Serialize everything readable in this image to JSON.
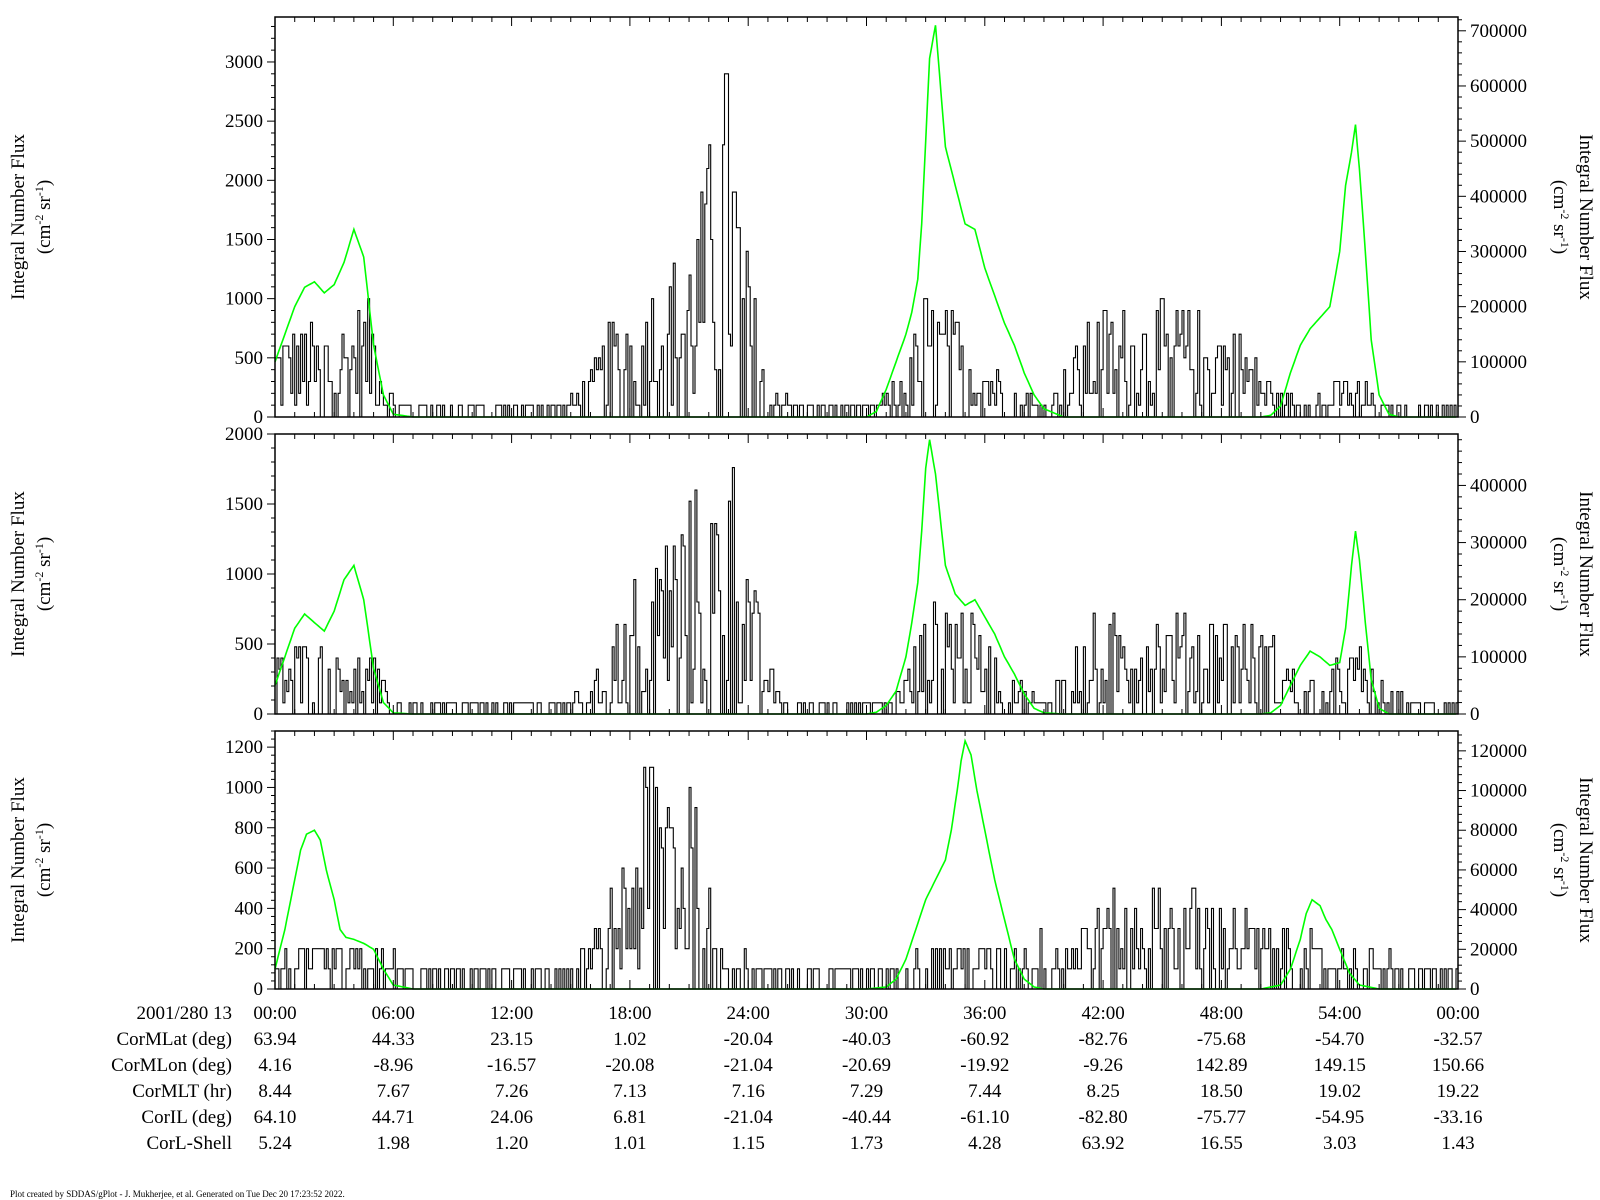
{
  "footer": "Plot created by SDDAS/gPlot - J. Mukherjee, et al.  Generated on Tue Dec 20 17:23:52 2022.",
  "colors": {
    "black_trace": "#000000",
    "green_trace": "#00ff00",
    "axes": "#000000"
  },
  "ylabel_line1": "Integral Number Flux",
  "ylabel_unit": "(cm",
  "ylabel_unit_exp1": "-2",
  "ylabel_unit_mid": " sr",
  "ylabel_unit_exp2": "-1",
  "ylabel_unit_end": ")",
  "ephemeris": {
    "time_header": "2001/280 13",
    "times": [
      "00:00",
      "06:00",
      "12:00",
      "18:00",
      "24:00",
      "30:00",
      "36:00",
      "42:00",
      "48:00",
      "54:00",
      "00:00"
    ],
    "rows": [
      {
        "label": "CorMLat (deg)",
        "values": [
          "63.94",
          "44.33",
          "23.15",
          "1.02",
          "-20.04",
          "-40.03",
          "-60.92",
          "-82.76",
          "-75.68",
          "-54.70",
          "-32.57"
        ]
      },
      {
        "label": "CorMLon (deg)",
        "values": [
          "4.16",
          "-8.96",
          "-16.57",
          "-20.08",
          "-21.04",
          "-20.69",
          "-19.92",
          "-9.26",
          "142.89",
          "149.15",
          "150.66"
        ]
      },
      {
        "label": "CorMLT (hr)",
        "values": [
          "8.44",
          "7.67",
          "7.26",
          "7.13",
          "7.16",
          "7.29",
          "7.44",
          "8.25",
          "18.50",
          "19.02",
          "19.22"
        ]
      },
      {
        "label": "CorIL (deg)",
        "values": [
          "64.10",
          "44.71",
          "24.06",
          "6.81",
          "-21.04",
          "-40.44",
          "-61.10",
          "-82.80",
          "-75.77",
          "-54.95",
          "-33.16"
        ]
      },
      {
        "label": "CorL-Shell",
        "values": [
          "5.24",
          "1.98",
          "1.20",
          "1.01",
          "1.15",
          "1.73",
          "4.28",
          "63.92",
          "16.55",
          "3.03",
          "1.43"
        ]
      }
    ]
  },
  "chart_data": [
    {
      "type": "line",
      "xlabel": "",
      "xlim": [
        0,
        60
      ],
      "x_ticks": [
        "00:00",
        "06:00",
        "12:00",
        "18:00",
        "24:00",
        "30:00",
        "36:00",
        "42:00",
        "48:00",
        "54:00",
        "00:00"
      ],
      "ylabel": "Integral Number Flux (cm-2 sr-1)",
      "ylim": [
        0,
        3380
      ],
      "y_ticks": [
        0,
        500,
        1000,
        1500,
        2000,
        2500,
        3000
      ],
      "y2label": "Integral Number Flux (cm-2 sr-1)",
      "y2lim": [
        0,
        725000
      ],
      "y2_ticks": [
        0,
        100000,
        200000,
        300000,
        400000,
        500000,
        600000,
        700000
      ],
      "grid": false,
      "series": [
        {
          "axis": "left",
          "color": "#000000",
          "step": 0.1,
          "envelope": {
            "x": [
              0,
              1,
              2,
              3,
              4,
              5,
              5.5,
              6,
              8,
              10,
              12,
              14,
              15.5,
              16.5,
              17.5,
              18.5,
              19.5,
              20.5,
              21.5,
              22.3,
              22.8,
              23.3,
              23.8,
              24.5,
              25,
              25.5,
              26,
              28,
              30,
              31,
              32,
              33,
              34,
              35,
              36,
              37,
              38,
              39,
              40,
              41,
              42,
              43,
              44,
              45,
              46,
              47,
              48,
              49,
              50,
              51,
              52,
              53,
              54,
              55,
              56,
              58,
              60
            ],
            "y": [
              700,
              750,
              700,
              750,
              850,
              900,
              350,
              150,
              100,
              100,
              100,
              100,
              250,
              550,
              900,
              1100,
              1200,
              1300,
              1700,
              2500,
              2900,
              2300,
              1400,
              800,
              400,
              200,
              150,
              100,
              100,
              200,
              500,
              1000,
              900,
              700,
              500,
              350,
              200,
              150,
              350,
              750,
              850,
              850,
              900,
              900,
              900,
              850,
              800,
              700,
              400,
              200,
              150,
              200,
              350,
              300,
              100,
              100,
              100
            ]
          }
        },
        {
          "axis": "right",
          "color": "#00ff00",
          "x": [
            0,
            0.5,
            1,
            1.5,
            2,
            2.5,
            3,
            3.5,
            4,
            4.5,
            5,
            5.5,
            6,
            7,
            8,
            10,
            12,
            14,
            16,
            18,
            20,
            22,
            24,
            26,
            28,
            29,
            30,
            30.5,
            31,
            31.5,
            32,
            32.3,
            32.6,
            32.8,
            33,
            33.2,
            33.5,
            34,
            34.5,
            35,
            35.5,
            36,
            36.5,
            37,
            37.5,
            38,
            38.5,
            39,
            40,
            42,
            44,
            46,
            48,
            50,
            50.5,
            51,
            51.5,
            52,
            52.5,
            53,
            53.5,
            54,
            54.3,
            54.6,
            54.8,
            55,
            55.3,
            55.6,
            56,
            56.5,
            57,
            58,
            60
          ],
          "y": [
            100000,
            150000,
            200000,
            235000,
            245000,
            225000,
            240000,
            280000,
            340000,
            290000,
            130000,
            40000,
            5000,
            0,
            0,
            0,
            0,
            0,
            0,
            0,
            0,
            0,
            0,
            0,
            0,
            0,
            0,
            10000,
            50000,
            100000,
            150000,
            190000,
            250000,
            350000,
            500000,
            650000,
            710000,
            490000,
            420000,
            350000,
            340000,
            270000,
            220000,
            170000,
            130000,
            80000,
            40000,
            15000,
            0,
            0,
            0,
            0,
            0,
            0,
            3000,
            20000,
            80000,
            130000,
            160000,
            180000,
            200000,
            300000,
            420000,
            480000,
            530000,
            450000,
            300000,
            140000,
            40000,
            5000,
            0,
            0,
            0
          ]
        }
      ]
    },
    {
      "type": "line",
      "xlabel": "",
      "xlim": [
        0,
        60
      ],
      "x_ticks": [
        "00:00",
        "06:00",
        "12:00",
        "18:00",
        "24:00",
        "30:00",
        "36:00",
        "42:00",
        "48:00",
        "54:00",
        "00:00"
      ],
      "ylabel": "Integral Number Flux (cm-2 sr-1)",
      "ylim": [
        0,
        2000
      ],
      "y_ticks": [
        0,
        500,
        1000,
        1500,
        2000
      ],
      "y2label": "Integral Number Flux (cm-2 sr-1)",
      "y2lim": [
        0,
        490000
      ],
      "y2_ticks": [
        0,
        100000,
        200000,
        300000,
        400000
      ],
      "grid": false,
      "series": [
        {
          "axis": "left",
          "color": "#000000",
          "step": 0.1,
          "envelope": {
            "x": [
              0,
              1,
              2,
              3,
              4,
              5,
              5.5,
              6,
              8,
              10,
              12,
              14,
              16,
              17,
              18,
              19,
              20,
              21,
              22,
              22.5,
              23,
              23.5,
              24,
              24.5,
              25,
              25.5,
              26,
              28,
              30,
              31,
              32,
              33,
              34,
              35,
              36,
              37,
              38,
              39,
              40,
              41,
              42,
              44,
              46,
              48,
              50,
              52,
              53,
              54,
              55,
              56,
              58,
              60
            ],
            "y": [
              400,
              500,
              500,
              400,
              450,
              400,
              200,
              80,
              80,
              80,
              80,
              100,
              200,
              500,
              900,
              1100,
              1300,
              1500,
              1400,
              1700,
              1900,
              1600,
              1100,
              700,
              400,
              150,
              80,
              80,
              80,
              100,
              300,
              700,
              900,
              700,
              500,
              400,
              200,
              80,
              400,
              600,
              700,
              700,
              700,
              700,
              600,
              300,
              200,
              400,
              450,
              200,
              80,
              80
            ]
          }
        },
        {
          "axis": "right",
          "color": "#00ff00",
          "x": [
            0,
            0.5,
            1,
            1.5,
            2,
            2.5,
            3,
            3.5,
            4,
            4.5,
            5,
            5.5,
            6,
            7,
            8,
            10,
            12,
            14,
            16,
            18,
            20,
            22,
            24,
            26,
            28,
            29,
            30,
            30.5,
            31,
            31.5,
            32,
            32.3,
            32.6,
            32.8,
            33,
            33.2,
            33.5,
            34,
            34.5,
            35,
            35.5,
            36,
            36.5,
            37,
            37.5,
            38,
            38.5,
            39,
            40,
            42,
            44,
            46,
            48,
            50,
            50.5,
            51,
            51.5,
            52,
            52.5,
            53,
            53.5,
            54,
            54.3,
            54.6,
            54.8,
            55,
            55.3,
            55.6,
            56,
            56.5,
            57,
            58,
            60
          ],
          "y": [
            50000,
            100000,
            150000,
            175000,
            160000,
            145000,
            180000,
            235000,
            260000,
            200000,
            80000,
            20000,
            2000,
            0,
            0,
            0,
            0,
            0,
            0,
            0,
            0,
            0,
            0,
            0,
            0,
            0,
            0,
            3000,
            15000,
            40000,
            100000,
            160000,
            230000,
            320000,
            430000,
            480000,
            420000,
            260000,
            210000,
            190000,
            200000,
            170000,
            140000,
            100000,
            70000,
            35000,
            10000,
            2000,
            0,
            0,
            0,
            0,
            0,
            0,
            2000,
            15000,
            50000,
            85000,
            110000,
            100000,
            85000,
            90000,
            150000,
            260000,
            320000,
            270000,
            160000,
            60000,
            10000,
            0,
            0,
            0,
            0
          ]
        }
      ]
    },
    {
      "type": "line",
      "xlabel": "",
      "xlim": [
        0,
        60
      ],
      "x_ticks": [
        "00:00",
        "06:00",
        "12:00",
        "18:00",
        "24:00",
        "30:00",
        "36:00",
        "42:00",
        "48:00",
        "54:00",
        "00:00"
      ],
      "ylabel": "Integral Number Flux (cm-2 sr-1)",
      "ylim": [
        0,
        1280
      ],
      "y_ticks": [
        0,
        200,
        400,
        600,
        800,
        1000,
        1200
      ],
      "y2label": "Integral Number Flux (cm-2 sr-1)",
      "y2lim": [
        0,
        130000
      ],
      "y2_ticks": [
        0,
        20000,
        40000,
        60000,
        80000,
        100000,
        120000
      ],
      "grid": false,
      "series": [
        {
          "axis": "left",
          "color": "#000000",
          "step": 0.1,
          "envelope": {
            "x": [
              0,
              2,
              4,
              6,
              8,
              10,
              12,
              14,
              15.5,
              16.5,
              17.5,
              18.5,
              19,
              19.5,
              20,
              20.5,
              21,
              21.5,
              22,
              22.5,
              23,
              24,
              26,
              28,
              30,
              32,
              34,
              36,
              38,
              40,
              42,
              44,
              46,
              48,
              50,
              52,
              54,
              56,
              58,
              60
            ],
            "y": [
              150,
              200,
              200,
              150,
              120,
              120,
              120,
              120,
              150,
              300,
              600,
              900,
              1200,
              1100,
              1200,
              900,
              1100,
              700,
              450,
              350,
              250,
              150,
              120,
              120,
              120,
              150,
              200,
              250,
              200,
              300,
              400,
              450,
              450,
              450,
              350,
              250,
              200,
              150,
              120,
              120
            ]
          }
        },
        {
          "axis": "right",
          "color": "#00ff00",
          "x": [
            0,
            0.5,
            1,
            1.3,
            1.6,
            2,
            2.3,
            2.6,
            3,
            3.3,
            3.6,
            4,
            4.5,
            5,
            5.5,
            6,
            7,
            8,
            10,
            12,
            14,
            16,
            18,
            20,
            22,
            24,
            26,
            28,
            30,
            31,
            31.5,
            32,
            32.5,
            33,
            33.5,
            34,
            34.3,
            34.6,
            34.8,
            35,
            35.3,
            35.6,
            36,
            36.5,
            37,
            37.5,
            38,
            38.5,
            39,
            40,
            42,
            44,
            46,
            48,
            50,
            51,
            51.5,
            52,
            52.3,
            52.6,
            53,
            53.3,
            53.6,
            54,
            54.5,
            55,
            56,
            58,
            60
          ],
          "y": [
            10000,
            30000,
            55000,
            70000,
            78000,
            80000,
            75000,
            60000,
            45000,
            30000,
            26000,
            25000,
            23000,
            20000,
            10000,
            2000,
            0,
            0,
            0,
            0,
            0,
            0,
            0,
            0,
            0,
            0,
            0,
            0,
            0,
            1000,
            5000,
            15000,
            30000,
            45000,
            55000,
            65000,
            80000,
            100000,
            115000,
            125000,
            118000,
            100000,
            80000,
            55000,
            35000,
            15000,
            5000,
            1000,
            0,
            0,
            0,
            0,
            0,
            0,
            0,
            2000,
            10000,
            25000,
            38000,
            45000,
            42000,
            35000,
            30000,
            20000,
            8000,
            2000,
            0,
            0,
            0
          ]
        }
      ]
    }
  ]
}
